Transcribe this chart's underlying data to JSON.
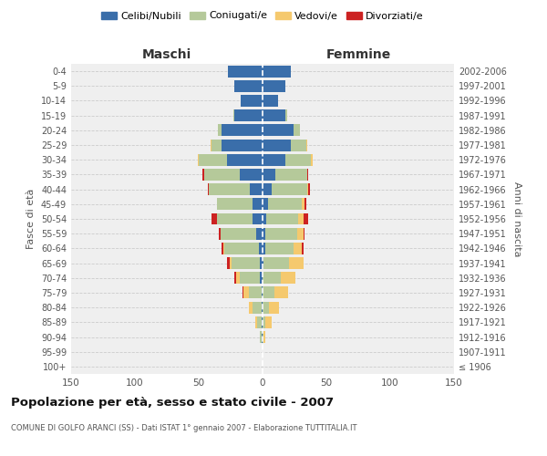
{
  "age_groups": [
    "100+",
    "95-99",
    "90-94",
    "85-89",
    "80-84",
    "75-79",
    "70-74",
    "65-69",
    "60-64",
    "55-59",
    "50-54",
    "45-49",
    "40-44",
    "35-39",
    "30-34",
    "25-29",
    "20-24",
    "15-19",
    "10-14",
    "5-9",
    "0-4"
  ],
  "birth_years": [
    "≤ 1906",
    "1907-1911",
    "1912-1916",
    "1917-1921",
    "1922-1926",
    "1927-1931",
    "1932-1936",
    "1937-1941",
    "1942-1946",
    "1947-1951",
    "1952-1956",
    "1957-1961",
    "1962-1966",
    "1967-1971",
    "1972-1976",
    "1977-1981",
    "1982-1986",
    "1987-1991",
    "1992-1996",
    "1997-2001",
    "2002-2006"
  ],
  "male": {
    "celibi": [
      0,
      0,
      1,
      1,
      1,
      1,
      2,
      2,
      3,
      5,
      8,
      8,
      10,
      18,
      28,
      32,
      32,
      22,
      17,
      22,
      27
    ],
    "coniugati": [
      0,
      0,
      1,
      3,
      7,
      10,
      16,
      22,
      27,
      28,
      28,
      28,
      32,
      28,
      22,
      8,
      3,
      1,
      0,
      0,
      0
    ],
    "vedovi": [
      0,
      0,
      0,
      2,
      3,
      4,
      3,
      2,
      1,
      0,
      0,
      0,
      0,
      0,
      1,
      1,
      0,
      0,
      0,
      0,
      0
    ],
    "divorziati": [
      0,
      0,
      0,
      0,
      0,
      1,
      1,
      2,
      1,
      1,
      4,
      0,
      1,
      1,
      0,
      0,
      0,
      0,
      0,
      0,
      0
    ]
  },
  "female": {
    "nubili": [
      0,
      0,
      0,
      0,
      0,
      0,
      0,
      1,
      2,
      2,
      3,
      4,
      7,
      10,
      18,
      22,
      24,
      18,
      12,
      18,
      22
    ],
    "coniugate": [
      0,
      0,
      1,
      2,
      5,
      9,
      14,
      20,
      22,
      25,
      25,
      27,
      28,
      25,
      20,
      12,
      5,
      1,
      0,
      0,
      0
    ],
    "vedove": [
      0,
      0,
      1,
      5,
      8,
      11,
      12,
      11,
      7,
      5,
      4,
      2,
      1,
      0,
      1,
      1,
      0,
      0,
      0,
      0,
      0
    ],
    "divorziate": [
      0,
      0,
      0,
      0,
      0,
      0,
      0,
      0,
      1,
      1,
      4,
      1,
      1,
      1,
      0,
      0,
      0,
      0,
      0,
      0,
      0
    ]
  },
  "colors": {
    "celibi": "#3a6eaa",
    "coniugati": "#b5c99a",
    "vedovi": "#f5c96e",
    "divorziati": "#cc2222"
  },
  "xlim": 150,
  "title": "Popolazione per età, sesso e stato civile - 2007",
  "subtitle": "COMUNE DI GOLFO ARANCI (SS) - Dati ISTAT 1° gennaio 2007 - Elaborazione TUTTITALIA.IT",
  "xlabel_left": "Maschi",
  "xlabel_right": "Femmine",
  "ylabel_left": "Fasce di età",
  "ylabel_right": "Anni di nascita",
  "bg_color": "#efefef",
  "grid_color": "#cccccc"
}
